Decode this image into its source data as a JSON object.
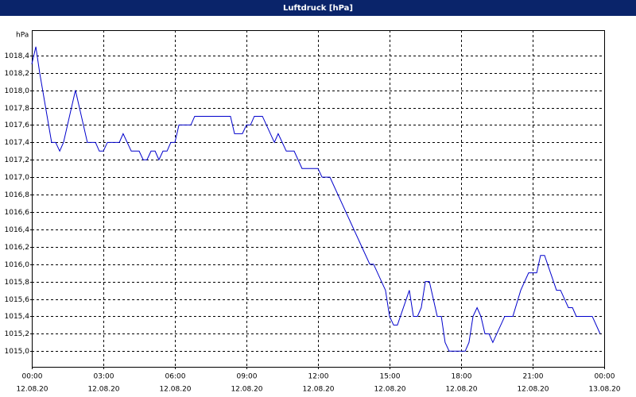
{
  "chart_data": {
    "type": "line",
    "title": "Luftdruck [hPa]",
    "y_label": "hPa",
    "color": "#0000cc",
    "grid": true,
    "xlim": [
      0,
      24
    ],
    "xticks": [
      {
        "value": 0,
        "label": "00:00",
        "date": "12.08.20"
      },
      {
        "value": 3,
        "label": "03:00",
        "date": "12.08.20"
      },
      {
        "value": 6,
        "label": "06:00",
        "date": "12.08.20"
      },
      {
        "value": 9,
        "label": "09:00",
        "date": "12.08.20"
      },
      {
        "value": 12,
        "label": "12:00",
        "date": "12.08.20"
      },
      {
        "value": 15,
        "label": "15:00",
        "date": "12.08.20"
      },
      {
        "value": 18,
        "label": "18:00",
        "date": "12.08.20"
      },
      {
        "value": 21,
        "label": "21:00",
        "date": "12.08.20"
      },
      {
        "value": 24,
        "label": "00:00",
        "date": "13.08.20"
      }
    ],
    "ylim": [
      1014.82,
      1018.69
    ],
    "yticks": [
      {
        "value": 1015.0,
        "label": "1015,0"
      },
      {
        "value": 1015.2,
        "label": "1015,2"
      },
      {
        "value": 1015.4,
        "label": "1015,4"
      },
      {
        "value": 1015.6,
        "label": "1015,6"
      },
      {
        "value": 1015.8,
        "label": "1015,8"
      },
      {
        "value": 1016.0,
        "label": "1016,0"
      },
      {
        "value": 1016.2,
        "label": "1016,2"
      },
      {
        "value": 1016.4,
        "label": "1016,4"
      },
      {
        "value": 1016.6,
        "label": "1016,6"
      },
      {
        "value": 1016.8,
        "label": "1016,8"
      },
      {
        "value": 1017.0,
        "label": "1017,0"
      },
      {
        "value": 1017.2,
        "label": "1017,2"
      },
      {
        "value": 1017.4,
        "label": "1017,4"
      },
      {
        "value": 1017.6,
        "label": "1017,6"
      },
      {
        "value": 1017.8,
        "label": "1017,8"
      },
      {
        "value": 1018.0,
        "label": "1018,0"
      },
      {
        "value": 1018.2,
        "label": "1018,2"
      },
      {
        "value": 1018.4,
        "label": "1018,4"
      }
    ],
    "x": [
      0,
      0.17,
      0.33,
      0.83,
      1.0,
      1.17,
      1.33,
      1.83,
      2.33,
      2.67,
      2.83,
      3.0,
      3.17,
      3.67,
      3.83,
      4.17,
      4.5,
      4.67,
      4.83,
      5.0,
      5.17,
      5.33,
      5.5,
      5.67,
      5.83,
      6.0,
      6.17,
      6.67,
      6.83,
      8.33,
      8.5,
      8.83,
      9.0,
      9.17,
      9.33,
      9.67,
      10.17,
      10.33,
      10.67,
      11.0,
      11.33,
      12.0,
      12.17,
      12.5,
      14.17,
      14.33,
      14.83,
      15.0,
      15.17,
      15.33,
      15.83,
      16.0,
      16.17,
      16.33,
      16.5,
      16.67,
      17.0,
      17.17,
      17.33,
      17.5,
      18.17,
      18.33,
      18.5,
      18.67,
      18.83,
      19.0,
      19.17,
      19.33,
      19.83,
      20.17,
      20.5,
      20.83,
      21.17,
      21.33,
      21.5,
      22.0,
      22.17,
      22.5,
      22.67,
      22.83,
      23.5,
      23.83
    ],
    "values": [
      1018.3,
      1018.5,
      1018.2,
      1017.4,
      1017.4,
      1017.3,
      1017.4,
      1018.0,
      1017.4,
      1017.4,
      1017.3,
      1017.3,
      1017.4,
      1017.4,
      1017.5,
      1017.3,
      1017.3,
      1017.2,
      1017.2,
      1017.3,
      1017.3,
      1017.2,
      1017.3,
      1017.3,
      1017.4,
      1017.4,
      1017.6,
      1017.6,
      1017.7,
      1017.7,
      1017.5,
      1017.5,
      1017.6,
      1017.6,
      1017.7,
      1017.7,
      1017.4,
      1017.5,
      1017.3,
      1017.3,
      1017.1,
      1017.1,
      1017.0,
      1017.0,
      1016.0,
      1016.0,
      1015.7,
      1015.4,
      1015.3,
      1015.3,
      1015.7,
      1015.4,
      1015.4,
      1015.5,
      1015.8,
      1015.8,
      1015.4,
      1015.4,
      1015.1,
      1015.0,
      1015.0,
      1015.1,
      1015.4,
      1015.5,
      1015.4,
      1015.2,
      1015.2,
      1015.1,
      1015.4,
      1015.4,
      1015.7,
      1015.9,
      1015.9,
      1016.1,
      1016.1,
      1015.7,
      1015.7,
      1015.5,
      1015.5,
      1015.4,
      1015.4,
      1015.2
    ]
  }
}
